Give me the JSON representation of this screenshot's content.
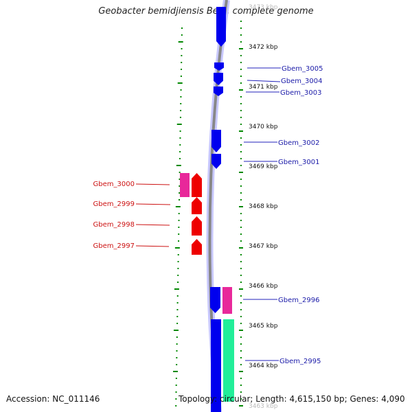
{
  "title": "Geobacter bemidjiensis Bem, complete genome",
  "footer": {
    "accession": "Accession: NC_011146",
    "summary": "Topology: circular; Length: 4,615,150 bp; Genes: 4,090"
  },
  "scale_labels": [
    "3473 kbp",
    "3472 kbp",
    "3471 kbp",
    "3470 kbp",
    "3469 kbp",
    "3468 kbp",
    "3467 kbp",
    "3466 kbp",
    "3465 kbp",
    "3464 kbp",
    "3463 kbp"
  ],
  "colors": {
    "forward_gene": "#0000ee",
    "reverse_gene": "#ee0000",
    "magenta_feature": "#e8289a",
    "green_feature": "#22ee99",
    "backbone": "#888888",
    "backbone_halo": "#c8c8ff",
    "tick": "#008800"
  },
  "forward_labels": [
    "Gbem_3005",
    "Gbem_3004",
    "Gbem_3003",
    "Gbem_3002",
    "Gbem_3001",
    "Gbem_2996",
    "Gbem_2995"
  ],
  "reverse_labels": [
    "Gbem_3000",
    "Gbem_2999",
    "Gbem_2998",
    "Gbem_2997"
  ]
}
